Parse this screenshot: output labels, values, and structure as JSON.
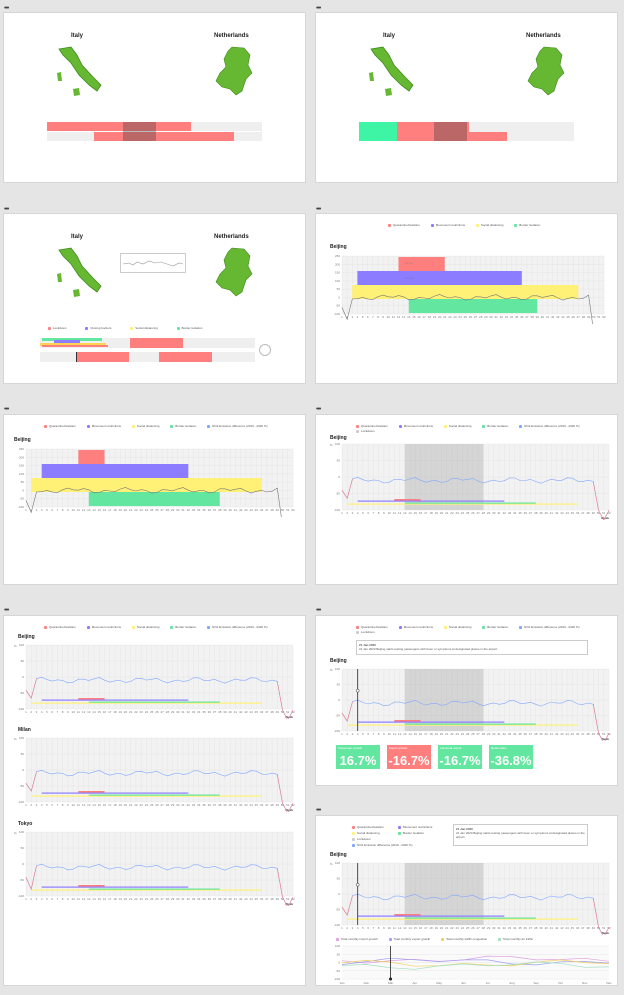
{
  "window_dots": "•••",
  "countries": {
    "left": "Italy",
    "right": "Netherlands"
  },
  "legend_basic": [
    "Quarantine/Isolation",
    "Movement restrictions",
    "Social distancing",
    "Border Isolation"
  ],
  "legend_full": [
    "Quarantine/Isolation",
    "Movement restrictions",
    "Social distancing",
    "Border Isolation",
    "NO2 Emission difference (2019 - 2020 %)"
  ],
  "legend_lockdown": "Lockdown",
  "legend_card3": [
    "Lockdown",
    "Closing borders",
    "Social distancing",
    "Border isolation"
  ],
  "cities": {
    "beijing": "Beijing",
    "milan": "Milan",
    "tokyo": "Tokyo"
  },
  "axis_week": "Week",
  "axis_pct": "%",
  "y_ticks": [
    "250",
    "200",
    "150",
    "100",
    "50",
    "0",
    "-50",
    "-100"
  ],
  "y_ticks_pct": [
    "100",
    "50",
    "0",
    "-50",
    "-100"
  ],
  "bar_labels": [
    "x x x x",
    "x x x x"
  ],
  "tooltip": {
    "date": "21 Jan 2020",
    "text": "21 Jan 2020 Beijing starts testing passengers with fever or symptoms at designated places in the airport."
  },
  "stats": [
    {
      "label": "Passenger growth",
      "value": "16.7%",
      "color": "#63e6a0"
    },
    {
      "label": "Import growth",
      "value": "-16.7%",
      "color": "#ff7f7f"
    },
    {
      "label": "Industrial output",
      "value": "-16.7%",
      "color": "#63e6a0"
    },
    {
      "label": "Retail sales",
      "value": "-36.8%",
      "color": "#63e6a0"
    }
  ],
  "bottom_legend": [
    "Total monthly import growth",
    "Total monthly export growth",
    "Total monthly traffic congestion",
    "Total monthly air traffic"
  ],
  "months": [
    "Jan",
    "Feb",
    "Mar",
    "Apr",
    "May",
    "Jun",
    "Jul",
    "Aug",
    "Sep",
    "Oct",
    "Nov",
    "Dec"
  ],
  "colors": {
    "quarantine": "#ff7f7f",
    "movement": "#8c7cff",
    "social": "#fff176",
    "border": "#63e6a0",
    "no2": "#7fa7ff",
    "map_green": "#66b832"
  },
  "week_count": 52
}
